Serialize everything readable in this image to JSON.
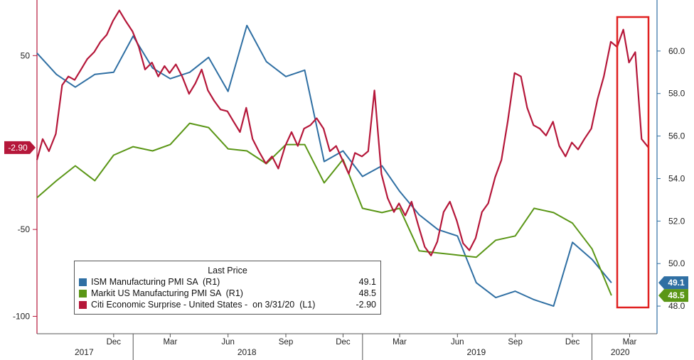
{
  "chart_data": {
    "type": "line",
    "title": "",
    "x_range": [
      "2017-08-01",
      "2020-03-31"
    ],
    "left_axis": {
      "ylim": [
        -110,
        82
      ],
      "ticks": [
        50,
        -50,
        -100
      ]
    },
    "right_axis": {
      "ylim": [
        46.7,
        62.4
      ],
      "ticks": [
        "60.0",
        "58.0",
        "56.0",
        "54.0",
        "52.0",
        "50.0",
        "48.0"
      ]
    },
    "x_month_ticks": [
      {
        "label": "Dec",
        "date": "2017-12-01"
      },
      {
        "label": "Mar",
        "date": "2018-03-01"
      },
      {
        "label": "Jun",
        "date": "2018-06-01"
      },
      {
        "label": "Sep",
        "date": "2018-09-01"
      },
      {
        "label": "Dec",
        "date": "2018-12-01"
      },
      {
        "label": "Mar",
        "date": "2019-03-01"
      },
      {
        "label": "Jun",
        "date": "2019-06-01"
      },
      {
        "label": "Sep",
        "date": "2019-09-01"
      },
      {
        "label": "Dec",
        "date": "2019-12-01"
      },
      {
        "label": "Mar",
        "date": "2020-03-01"
      }
    ],
    "x_year_labels": [
      {
        "label": "2017",
        "date": "2017-10-15"
      },
      {
        "label": "2018",
        "date": "2018-07-01"
      },
      {
        "label": "2019",
        "date": "2019-07-01"
      },
      {
        "label": "2020",
        "date": "2020-02-15"
      }
    ],
    "x_year_dividers": [
      "2018-01-01",
      "2019-01-01",
      "2020-01-01"
    ],
    "series": [
      {
        "name": "ISM Manufacturing PMI SA  (R1)",
        "axis": "right",
        "color": "#2f6fa3",
        "last_value": "49.1",
        "points": [
          [
            "2017-08-01",
            59.9
          ],
          [
            "2017-09-01",
            58.9
          ],
          [
            "2017-10-01",
            58.3
          ],
          [
            "2017-11-01",
            58.9
          ],
          [
            "2017-12-01",
            59.0
          ],
          [
            "2018-01-01",
            60.7
          ],
          [
            "2018-02-01",
            59.2
          ],
          [
            "2018-03-01",
            58.7
          ],
          [
            "2018-04-01",
            59.0
          ],
          [
            "2018-05-01",
            59.7
          ],
          [
            "2018-06-01",
            58.1
          ],
          [
            "2018-07-01",
            61.2
          ],
          [
            "2018-08-01",
            59.5
          ],
          [
            "2018-09-01",
            58.8
          ],
          [
            "2018-10-01",
            59.1
          ],
          [
            "2018-11-01",
            54.8
          ],
          [
            "2018-12-01",
            55.3
          ],
          [
            "2019-01-01",
            54.1
          ],
          [
            "2019-02-01",
            54.6
          ],
          [
            "2019-03-01",
            53.4
          ],
          [
            "2019-04-01",
            52.3
          ],
          [
            "2019-05-01",
            51.6
          ],
          [
            "2019-06-01",
            51.3
          ],
          [
            "2019-07-01",
            49.1
          ],
          [
            "2019-08-01",
            48.4
          ],
          [
            "2019-09-01",
            48.7
          ],
          [
            "2019-10-01",
            48.3
          ],
          [
            "2019-11-01",
            48.0
          ],
          [
            "2019-12-01",
            51.0
          ],
          [
            "2020-01-01",
            50.2
          ],
          [
            "2020-02-01",
            49.1
          ]
        ]
      },
      {
        "name": "Markit US Manufacturing PMI SA  (R1)",
        "axis": "right",
        "color": "#5a9616",
        "last_value": "48.5",
        "points": [
          [
            "2017-08-01",
            53.1
          ],
          [
            "2017-09-01",
            53.9
          ],
          [
            "2017-10-01",
            54.6
          ],
          [
            "2017-11-01",
            53.9
          ],
          [
            "2017-12-01",
            55.1
          ],
          [
            "2018-01-01",
            55.5
          ],
          [
            "2018-02-01",
            55.3
          ],
          [
            "2018-03-01",
            55.6
          ],
          [
            "2018-04-01",
            56.6
          ],
          [
            "2018-05-01",
            56.4
          ],
          [
            "2018-06-01",
            55.4
          ],
          [
            "2018-07-01",
            55.3
          ],
          [
            "2018-08-01",
            54.7
          ],
          [
            "2018-09-01",
            55.6
          ],
          [
            "2018-10-01",
            55.6
          ],
          [
            "2018-11-01",
            53.8
          ],
          [
            "2018-12-01",
            54.9
          ],
          [
            "2019-01-01",
            52.6
          ],
          [
            "2019-02-01",
            52.4
          ],
          [
            "2019-03-01",
            52.6
          ],
          [
            "2019-04-01",
            50.6
          ],
          [
            "2019-05-01",
            50.5
          ],
          [
            "2019-06-01",
            50.4
          ],
          [
            "2019-07-01",
            50.3
          ],
          [
            "2019-08-01",
            51.1
          ],
          [
            "2019-09-01",
            51.3
          ],
          [
            "2019-10-01",
            52.6
          ],
          [
            "2019-11-01",
            52.4
          ],
          [
            "2019-12-01",
            51.9
          ],
          [
            "2020-01-01",
            50.7
          ],
          [
            "2020-02-01",
            48.5
          ]
        ]
      },
      {
        "name": "Citi Economic Surprise - United States -  on 3/31/20  (L1)",
        "axis": "left",
        "color": "#b5173a",
        "last_value": "-2.90",
        "points": [
          [
            "2017-08-01",
            -10
          ],
          [
            "2017-08-10",
            2
          ],
          [
            "2017-08-20",
            -5
          ],
          [
            "2017-08-31",
            5
          ],
          [
            "2017-09-10",
            33
          ],
          [
            "2017-09-20",
            38
          ],
          [
            "2017-09-30",
            36
          ],
          [
            "2017-10-10",
            42
          ],
          [
            "2017-10-20",
            48
          ],
          [
            "2017-10-31",
            52
          ],
          [
            "2017-11-10",
            58
          ],
          [
            "2017-11-20",
            62
          ],
          [
            "2017-11-30",
            70
          ],
          [
            "2017-12-10",
            76
          ],
          [
            "2017-12-20",
            70
          ],
          [
            "2017-12-31",
            64
          ],
          [
            "2018-01-10",
            55
          ],
          [
            "2018-01-20",
            42
          ],
          [
            "2018-01-31",
            46
          ],
          [
            "2018-02-10",
            38
          ],
          [
            "2018-02-20",
            44
          ],
          [
            "2018-02-28",
            40
          ],
          [
            "2018-03-10",
            45
          ],
          [
            "2018-03-20",
            38
          ],
          [
            "2018-03-31",
            28
          ],
          [
            "2018-04-10",
            34
          ],
          [
            "2018-04-20",
            42
          ],
          [
            "2018-04-30",
            30
          ],
          [
            "2018-05-10",
            24
          ],
          [
            "2018-05-20",
            19
          ],
          [
            "2018-05-31",
            18
          ],
          [
            "2018-06-10",
            12
          ],
          [
            "2018-06-20",
            6
          ],
          [
            "2018-06-30",
            20
          ],
          [
            "2018-07-10",
            2
          ],
          [
            "2018-07-20",
            -5
          ],
          [
            "2018-07-31",
            -12
          ],
          [
            "2018-08-10",
            -8
          ],
          [
            "2018-08-20",
            -15
          ],
          [
            "2018-08-31",
            -2
          ],
          [
            "2018-09-10",
            6
          ],
          [
            "2018-09-20",
            -2
          ],
          [
            "2018-09-30",
            8
          ],
          [
            "2018-10-10",
            10
          ],
          [
            "2018-10-20",
            14
          ],
          [
            "2018-10-31",
            8
          ],
          [
            "2018-11-10",
            -5
          ],
          [
            "2018-11-20",
            -2
          ],
          [
            "2018-11-30",
            -10
          ],
          [
            "2018-12-10",
            -18
          ],
          [
            "2018-12-20",
            -6
          ],
          [
            "2018-12-31",
            -8
          ],
          [
            "2019-01-10",
            -5
          ],
          [
            "2019-01-20",
            30
          ],
          [
            "2019-01-31",
            -18
          ],
          [
            "2019-02-10",
            -32
          ],
          [
            "2019-02-20",
            -40
          ],
          [
            "2019-02-28",
            -35
          ],
          [
            "2019-03-10",
            -42
          ],
          [
            "2019-03-20",
            -34
          ],
          [
            "2019-03-31",
            -48
          ],
          [
            "2019-04-10",
            -60
          ],
          [
            "2019-04-20",
            -65
          ],
          [
            "2019-04-30",
            -57
          ],
          [
            "2019-05-10",
            -40
          ],
          [
            "2019-05-20",
            -34
          ],
          [
            "2019-05-31",
            -45
          ],
          [
            "2019-06-10",
            -58
          ],
          [
            "2019-06-20",
            -62
          ],
          [
            "2019-06-30",
            -55
          ],
          [
            "2019-07-10",
            -40
          ],
          [
            "2019-07-20",
            -35
          ],
          [
            "2019-07-31",
            -20
          ],
          [
            "2019-08-10",
            -10
          ],
          [
            "2019-08-20",
            12
          ],
          [
            "2019-08-31",
            40
          ],
          [
            "2019-09-10",
            38
          ],
          [
            "2019-09-20",
            20
          ],
          [
            "2019-09-30",
            10
          ],
          [
            "2019-10-10",
            8
          ],
          [
            "2019-10-20",
            4
          ],
          [
            "2019-10-31",
            12
          ],
          [
            "2019-11-10",
            -2
          ],
          [
            "2019-11-20",
            -8
          ],
          [
            "2019-11-30",
            0
          ],
          [
            "2019-12-10",
            -4
          ],
          [
            "2019-12-20",
            2
          ],
          [
            "2019-12-31",
            8
          ],
          [
            "2020-01-10",
            25
          ],
          [
            "2020-01-20",
            38
          ],
          [
            "2020-01-31",
            58
          ],
          [
            "2020-02-10",
            55
          ],
          [
            "2020-02-20",
            65
          ],
          [
            "2020-02-29",
            46
          ],
          [
            "2020-03-10",
            52
          ],
          [
            "2020-03-20",
            2
          ],
          [
            "2020-03-31",
            -2.9
          ]
        ]
      }
    ],
    "legend": {
      "title": "Last Price",
      "placement": "bottom-left"
    }
  }
}
